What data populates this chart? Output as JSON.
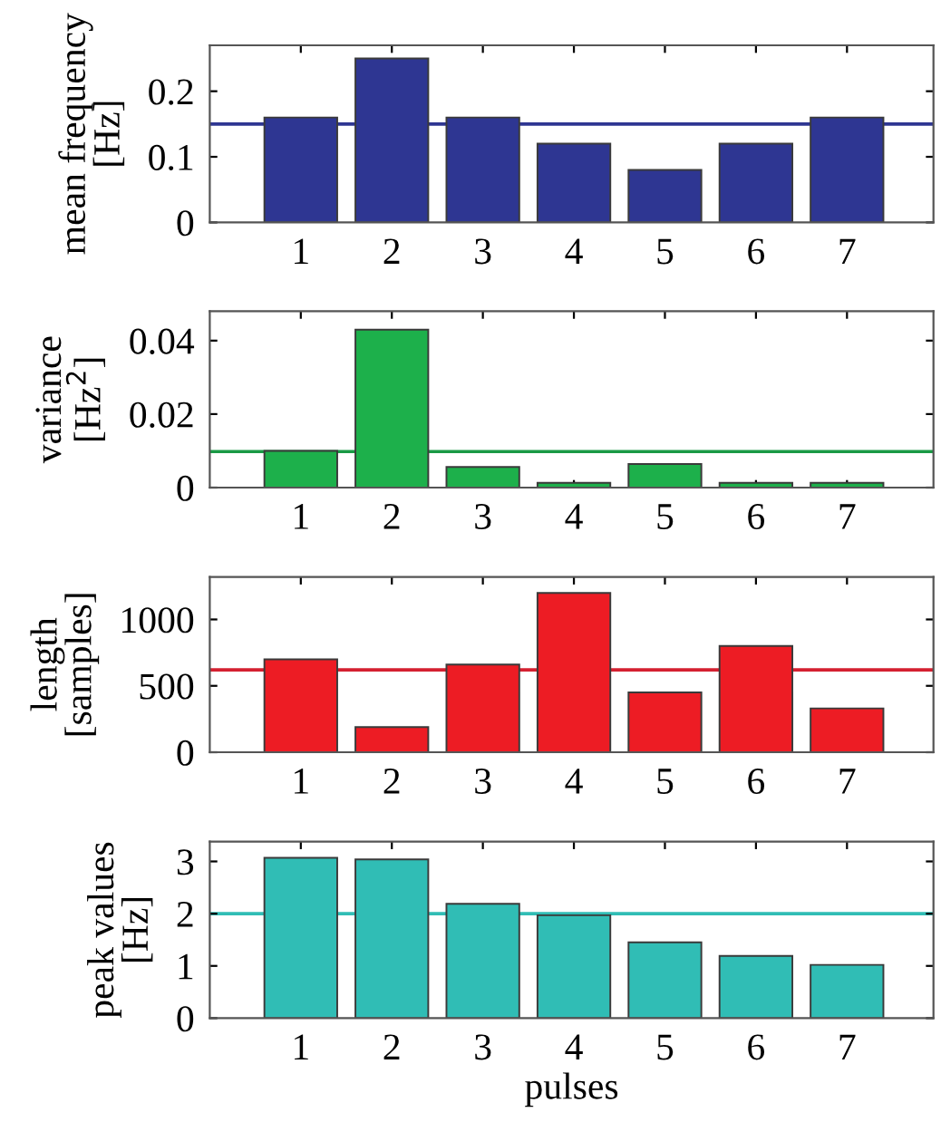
{
  "chart_data": [
    {
      "type": "bar",
      "ylabel": "mean frequency\n[Hz]",
      "categories": [
        "1",
        "2",
        "3",
        "4",
        "5",
        "6",
        "7"
      ],
      "values": [
        0.16,
        0.25,
        0.16,
        0.12,
        0.08,
        0.12,
        0.16
      ],
      "color": "#2e3692",
      "ylim": [
        0,
        0.27
      ],
      "yticks": [
        0,
        0.1,
        0.2
      ],
      "ref_lines": [
        {
          "axis": "y",
          "value": 0.15,
          "color": "#2e3692"
        }
      ]
    },
    {
      "type": "bar",
      "ylabel": "variance\n[Hz$^{2}$]",
      "categories": [
        "1",
        "2",
        "3",
        "4",
        "5",
        "6",
        "7"
      ],
      "values": [
        0.01,
        0.043,
        0.0056,
        0.0013,
        0.0064,
        0.0013,
        0.0013
      ],
      "color": "#1db04b",
      "ylim": [
        0,
        0.048
      ],
      "yticks": [
        0,
        0.02,
        0.04
      ],
      "ref_lines": [
        {
          "axis": "y",
          "value": 0.0098,
          "color": "#1a9a45"
        }
      ]
    },
    {
      "type": "bar",
      "ylabel": "length\n[samples]",
      "categories": [
        "1",
        "2",
        "3",
        "4",
        "5",
        "6",
        "7"
      ],
      "values": [
        700,
        190,
        660,
        1200,
        450,
        800,
        330
      ],
      "color": "#ed1c24",
      "ylim": [
        0,
        1320
      ],
      "yticks": [
        0,
        500,
        1000
      ],
      "ref_lines": [
        {
          "axis": "y",
          "value": 620,
          "color": "#d42030"
        }
      ]
    },
    {
      "type": "bar",
      "ylabel": "peak values\n[Hz]",
      "xlabel": "pulses",
      "categories": [
        "1",
        "2",
        "3",
        "4",
        "5",
        "6",
        "7"
      ],
      "values": [
        3.07,
        3.04,
        2.19,
        1.97,
        1.45,
        1.19,
        1.02
      ],
      "color": "#30bdb5",
      "ylim": [
        0,
        3.38
      ],
      "yticks": [
        0,
        1,
        2,
        3
      ],
      "ref_lines": [
        {
          "axis": "y",
          "value": 2.0,
          "color": "#30bdb5"
        }
      ]
    }
  ]
}
